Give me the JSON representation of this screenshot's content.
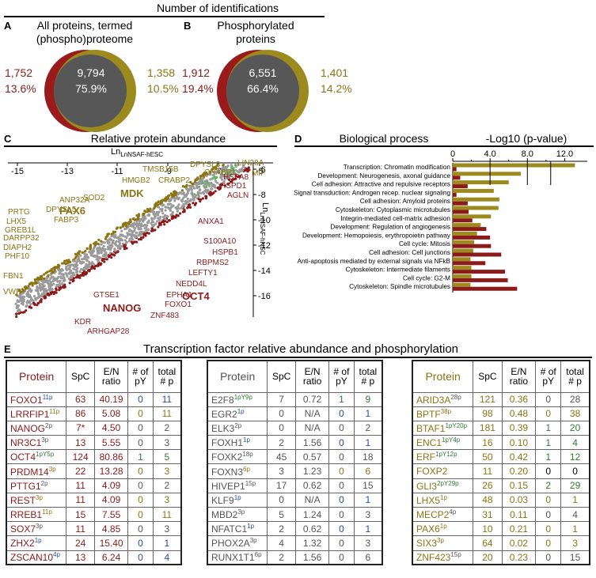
{
  "header": {
    "title": "Number of identifications"
  },
  "panelA": {
    "label": "A",
    "title": "All proteins, termed (phospho)proteome",
    "left_count": "1,752",
    "left_pct": "13.6%",
    "center_count": "9,794",
    "center_pct": "75.9%",
    "right_count": "1,358",
    "right_pct": "10.5%"
  },
  "panelB": {
    "label": "B",
    "title": "Phosphorylated proteins",
    "left_count": "1,912",
    "left_pct": "19.4%",
    "center_count": "6,551",
    "center_pct": "66.4%",
    "right_count": "1,401",
    "right_pct": "14.2%"
  },
  "panelC": {
    "label": "C",
    "title": "Relative protein abundance",
    "x_axis_label": "LnNSAF-hESC",
    "y_axis_label": "LnNSAF-hNSC",
    "x_ticks": [
      "-15",
      "-13",
      "-11",
      "-9",
      "-7",
      "-5"
    ],
    "y_ticks": [
      "-6",
      "-8",
      "-10",
      "-12",
      "-14",
      "-16"
    ],
    "gold_labels": [
      "TMSB15B",
      "DPYSL3",
      "LIN28A",
      "CRABP1",
      "MIF",
      "HMGB2",
      "CRABP2",
      "MDK",
      "SOD2",
      "ANP32A",
      "DPYSL5",
      "PAX6",
      "FABP3",
      "PRTG",
      "LHX5",
      "GREB1L",
      "DARPP32",
      "DIAPH2",
      "PHF10",
      "FBN1",
      "VWF"
    ],
    "red_labels": [
      "HSPA8",
      "HSPD1",
      "AGLN",
      "ANXA1",
      "S100A10",
      "HSPB1",
      "RBPMS2",
      "LEFTY1",
      "NEDD4L",
      "EPHA1",
      "OCT4",
      "FOXO1",
      "ZNF483",
      "GTSE1",
      "NANOG",
      "KDR",
      "ARHGAP28"
    ]
  },
  "panelD": {
    "label": "D",
    "title": "Biological process",
    "axis_label": "-Log10 (p-value)"
  },
  "chart_data": {
    "type": "bar",
    "title": "Biological process",
    "xlabel": "-Log10 (p-value)",
    "x_ticks": [
      "0",
      "4.0",
      "8.0",
      "12.0"
    ],
    "xlim": [
      0,
      14
    ],
    "categories": [
      "Transcription: Chromatin modification",
      "Development: Neurogenesis, axonal guidance",
      "Cell adhesion: Attractive and repulsive receptors",
      "Signal transduction: Androgen recep. nuclear signaling",
      "Cell adhesion: Amyloid proteins",
      "Cytoskeleton: Cytoplasmic microtubules",
      "Integrin-mediated cell-matrix adhesion",
      "Development: Regulation of angiogenesis",
      "Development: Hemopoiesis, erythropoietin pathway",
      "Cell cycle: Mitosis",
      "Cell adhesion: Cell junctions",
      "Anti-apoptosis mediated by external signals via NFkB",
      "Cytoskeleton: Intermediate filaments",
      "Cell cycle: G2-M",
      "Cytoskeleton: Spindle microtubules"
    ],
    "series": [
      {
        "name": "hNSC (gold)",
        "color": "#9c8a1e",
        "values": [
          13.1,
          7.3,
          6.0,
          4.4,
          5.0,
          4.9,
          4.1,
          3.0,
          2.6,
          2.3,
          2.2,
          1.9,
          2.0,
          2.0,
          1.9
        ]
      },
      {
        "name": "hESC (red)",
        "color": "#8b1a1a",
        "values": [
          0.4,
          0.8,
          1.6,
          0.4,
          1.6,
          1.7,
          2.1,
          3.6,
          4.0,
          4.1,
          5.2,
          3.5,
          5.6,
          5.9,
          6.9
        ]
      }
    ]
  },
  "panelE": {
    "label": "E",
    "title": "Transcription factor relative abundance and phosphorylation"
  },
  "tables": [
    {
      "headers": {
        "protein": "Protein",
        "spc": "SpC",
        "ratio": "E/N ratio",
        "py": "# of pY",
        "p": "total # p"
      },
      "rows": [
        {
          "name": "FOXO1",
          "sup": "11p",
          "spc": "63",
          "ratio": "40.19",
          "py": "0",
          "p": "11"
        },
        {
          "name": "LRRFIP1",
          "sup": "11p",
          "spc": "86",
          "ratio": "5.08",
          "py": "0",
          "p": "11"
        },
        {
          "name": "NANOG",
          "sup": "2p",
          "spc": "7*",
          "ratio": "4.50",
          "py": "0",
          "p": "2"
        },
        {
          "name": "NR3C1",
          "sup": "3p",
          "spc": "13",
          "ratio": "5.55",
          "py": "0",
          "p": "3"
        },
        {
          "name": "OCT4",
          "sup": "1pY5p",
          "spc": "124",
          "ratio": "80.86",
          "py": "1",
          "p": "5"
        },
        {
          "name": "PRDM14",
          "sup": "3p",
          "spc": "22",
          "ratio": "13.28",
          "py": "0",
          "p": "3"
        },
        {
          "name": "PTTG1",
          "sup": "2p",
          "spc": "11",
          "ratio": "4.09",
          "py": "0",
          "p": "2"
        },
        {
          "name": "REST",
          "sup": "3p",
          "spc": "11",
          "ratio": "4.09",
          "py": "0",
          "p": "3"
        },
        {
          "name": "RREB1",
          "sup": "11p",
          "spc": "15",
          "ratio": "7.55",
          "py": "0",
          "p": "11"
        },
        {
          "name": "SOX7",
          "sup": "3p",
          "spc": "11",
          "ratio": "4.85",
          "py": "0",
          "p": "3"
        },
        {
          "name": "ZHX2",
          "sup": "1p",
          "spc": "24",
          "ratio": "15.40",
          "py": "0",
          "p": "1"
        },
        {
          "name": "ZSCAN10",
          "sup": "4p",
          "spc": "13",
          "ratio": "6.24",
          "py": "0",
          "p": "4"
        }
      ]
    },
    {
      "headers": {
        "protein": "Protein",
        "spc": "SpC",
        "ratio": "E/N ratio",
        "py": "# of pY",
        "p": "total # p"
      },
      "rows": [
        {
          "name": "E2F8",
          "sup": "1pY9p",
          "spc": "7",
          "ratio": "0.72",
          "py": "1",
          "p": "9"
        },
        {
          "name": "EGR2",
          "sup": "1p",
          "spc": "0",
          "ratio": "N/A",
          "py": "0",
          "p": "1"
        },
        {
          "name": "ELK3",
          "sup": "2p",
          "spc": "0",
          "ratio": "N/A",
          "py": "0",
          "p": "2"
        },
        {
          "name": "FOXH1",
          "sup": "1p",
          "spc": "2",
          "ratio": "1.56",
          "py": "0",
          "p": "1"
        },
        {
          "name": "FOXK2",
          "sup": "18p",
          "spc": "45",
          "ratio": "0.57",
          "py": "0",
          "p": "18"
        },
        {
          "name": "FOXN3",
          "sup": "6p",
          "spc": "3",
          "ratio": "1.23",
          "py": "0",
          "p": "6"
        },
        {
          "name": "HIVEP1",
          "sup": "15p",
          "spc": "17",
          "ratio": "0.62",
          "py": "0",
          "p": "15"
        },
        {
          "name": "KLF9",
          "sup": "1p",
          "spc": "0",
          "ratio": "N/A",
          "py": "0",
          "p": "1"
        },
        {
          "name": "MBD2",
          "sup": "3p",
          "spc": "5",
          "ratio": "1.24",
          "py": "0",
          "p": "3"
        },
        {
          "name": "NFATC1",
          "sup": "1p",
          "spc": "2",
          "ratio": "0.62",
          "py": "0",
          "p": "1"
        },
        {
          "name": "PHOX2A",
          "sup": "3p",
          "spc": "4",
          "ratio": "1.32",
          "py": "0",
          "p": "3"
        },
        {
          "name": "RUNX1T1",
          "sup": "6p",
          "spc": "2",
          "ratio": "1.56",
          "py": "0",
          "p": "6"
        }
      ]
    },
    {
      "headers": {
        "protein": "Protein",
        "spc": "SpC",
        "ratio": "E/N ratio",
        "py": "# of pY",
        "p": "total # p"
      },
      "rows": [
        {
          "name": "ARID3A",
          "sup": "28p",
          "spc": "121",
          "ratio": "0.36",
          "py": "0",
          "p": "28"
        },
        {
          "name": "BPTF",
          "sup": "38p",
          "spc": "98",
          "ratio": "0.48",
          "py": "0",
          "p": "38"
        },
        {
          "name": "BTAF1",
          "sup": "1pY20p",
          "spc": "181",
          "ratio": "0.39",
          "py": "1",
          "p": "20"
        },
        {
          "name": "ENC1",
          "sup": "1pY4p",
          "spc": "16",
          "ratio": "0.10",
          "py": "1",
          "p": "4"
        },
        {
          "name": "ERF",
          "sup": "1pY12p",
          "spc": "50",
          "ratio": "0.42",
          "py": "1",
          "p": "12"
        },
        {
          "name": "FOXP2",
          "sup": "",
          "spc": "11",
          "ratio": "0.20",
          "py": "0",
          "p": "0"
        },
        {
          "name": "GLI3",
          "sup": "2pY29p",
          "spc": "26",
          "ratio": "0.15",
          "py": "2",
          "p": "29"
        },
        {
          "name": "LHX5",
          "sup": "1p",
          "spc": "48",
          "ratio": "0.03",
          "py": "0",
          "p": "1"
        },
        {
          "name": "MECP2",
          "sup": "4p",
          "spc": "31",
          "ratio": "0.11",
          "py": "0",
          "p": "4"
        },
        {
          "name": "PAX6",
          "sup": "1p",
          "spc": "10",
          "ratio": "0.21",
          "py": "0",
          "p": "1"
        },
        {
          "name": "SIX3",
          "sup": "3p",
          "spc": "64",
          "ratio": "0.02",
          "py": "0",
          "p": "3"
        },
        {
          "name": "ZNF423",
          "sup": "15p",
          "spc": "20",
          "ratio": "0.23",
          "py": "0",
          "p": "15"
        }
      ]
    }
  ],
  "colors": {
    "red": "#8b1a1a",
    "gold": "#8c7414",
    "venn_red": "#9a1b1b",
    "venn_gold": "#9c8a1e",
    "venn_center": "#555555",
    "scatter_grey": "#9a9a9a",
    "scatter_green": "#5cb85c"
  }
}
